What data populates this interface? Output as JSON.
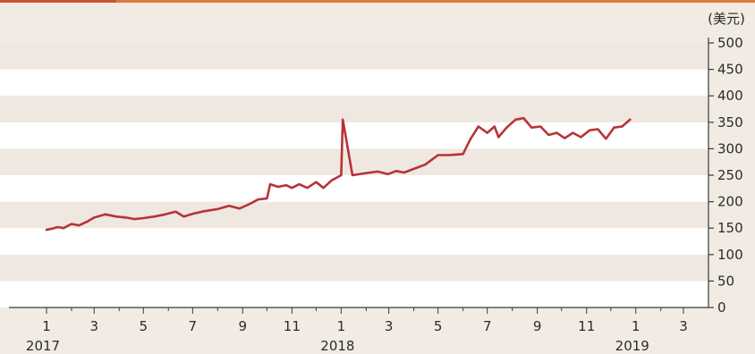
{
  "chart_data": {
    "type": "line",
    "title": "",
    "xlabel": "",
    "ylabel": "",
    "y_unit": "(美元)",
    "ylim": [
      0,
      500
    ],
    "y_ticks": [
      0,
      50,
      100,
      150,
      200,
      250,
      300,
      350,
      400,
      450,
      500
    ],
    "y_axis_side": "right",
    "grid": "alternating horizontal bands",
    "x_month_ticks": [
      "1",
      "3",
      "5",
      "7",
      "9",
      "11",
      "1",
      "3",
      "5",
      "7",
      "9",
      "11",
      "1",
      "3"
    ],
    "x_year_labels": [
      "2017",
      "2018",
      "2019"
    ],
    "line_color": "#b8323a",
    "band_light_color": "#ffffff",
    "band_dark_color": "#efe8e0",
    "series": [
      {
        "points": [
          [
            "2017-01-01",
            147
          ],
          [
            "2017-01-08",
            149
          ],
          [
            "2017-01-15",
            152
          ],
          [
            "2017-01-22",
            150
          ],
          [
            "2017-02-01",
            158
          ],
          [
            "2017-02-10",
            155
          ],
          [
            "2017-02-20",
            162
          ],
          [
            "2017-03-01",
            170
          ],
          [
            "2017-03-15",
            176
          ],
          [
            "2017-03-28",
            172
          ],
          [
            "2017-04-10",
            170
          ],
          [
            "2017-04-20",
            167
          ],
          [
            "2017-05-01",
            169
          ],
          [
            "2017-05-15",
            172
          ],
          [
            "2017-05-28",
            176
          ],
          [
            "2017-06-10",
            181
          ],
          [
            "2017-06-20",
            172
          ],
          [
            "2017-07-01",
            177
          ],
          [
            "2017-07-15",
            182
          ],
          [
            "2017-08-01",
            186
          ],
          [
            "2017-08-15",
            192
          ],
          [
            "2017-08-28",
            187
          ],
          [
            "2017-09-10",
            196
          ],
          [
            "2017-09-20",
            204
          ],
          [
            "2017-10-01",
            206
          ],
          [
            "2017-10-05",
            233
          ],
          [
            "2017-10-15",
            228
          ],
          [
            "2017-10-25",
            231
          ],
          [
            "2017-11-01",
            226
          ],
          [
            "2017-11-10",
            233
          ],
          [
            "2017-11-20",
            226
          ],
          [
            "2017-12-01",
            237
          ],
          [
            "2017-12-10",
            226
          ],
          [
            "2017-12-20",
            240
          ],
          [
            "2018-01-01",
            250
          ],
          [
            "2018-01-15",
            250
          ],
          [
            "2018-02-01",
            254
          ],
          [
            "2018-02-15",
            257
          ],
          [
            "2018-02-28",
            252
          ],
          [
            "2018-03-10",
            258
          ],
          [
            "2018-03-20",
            255
          ],
          [
            "2018-04-01",
            262
          ],
          [
            "2018-04-15",
            270
          ],
          [
            "2018-05-01",
            288
          ],
          [
            "2018-05-15",
            288
          ],
          [
            "2018-06-01",
            290
          ],
          [
            "2018-06-10",
            318
          ],
          [
            "2018-06-20",
            342
          ],
          [
            "2018-07-01",
            330
          ],
          [
            "2018-07-10",
            342
          ],
          [
            "2018-07-15",
            322
          ],
          [
            "2018-07-25",
            340
          ],
          [
            "2018-08-05",
            355
          ],
          [
            "2018-08-15",
            358
          ],
          [
            "2018-08-25",
            340
          ],
          [
            "2018-09-05",
            342
          ],
          [
            "2018-09-15",
            326
          ],
          [
            "2018-09-25",
            330
          ],
          [
            "2018-10-05",
            320
          ],
          [
            "2018-10-15",
            330
          ],
          [
            "2018-10-25",
            322
          ],
          [
            "2018-11-05",
            335
          ],
          [
            "2018-11-15",
            337
          ],
          [
            "2018-11-25",
            319
          ],
          [
            "2018-12-05",
            340
          ],
          [
            "2018-12-15",
            342
          ],
          [
            "2018-12-25",
            355
          ],
          [
            "2018-01-03",
            355
          ]
        ]
      }
    ]
  }
}
